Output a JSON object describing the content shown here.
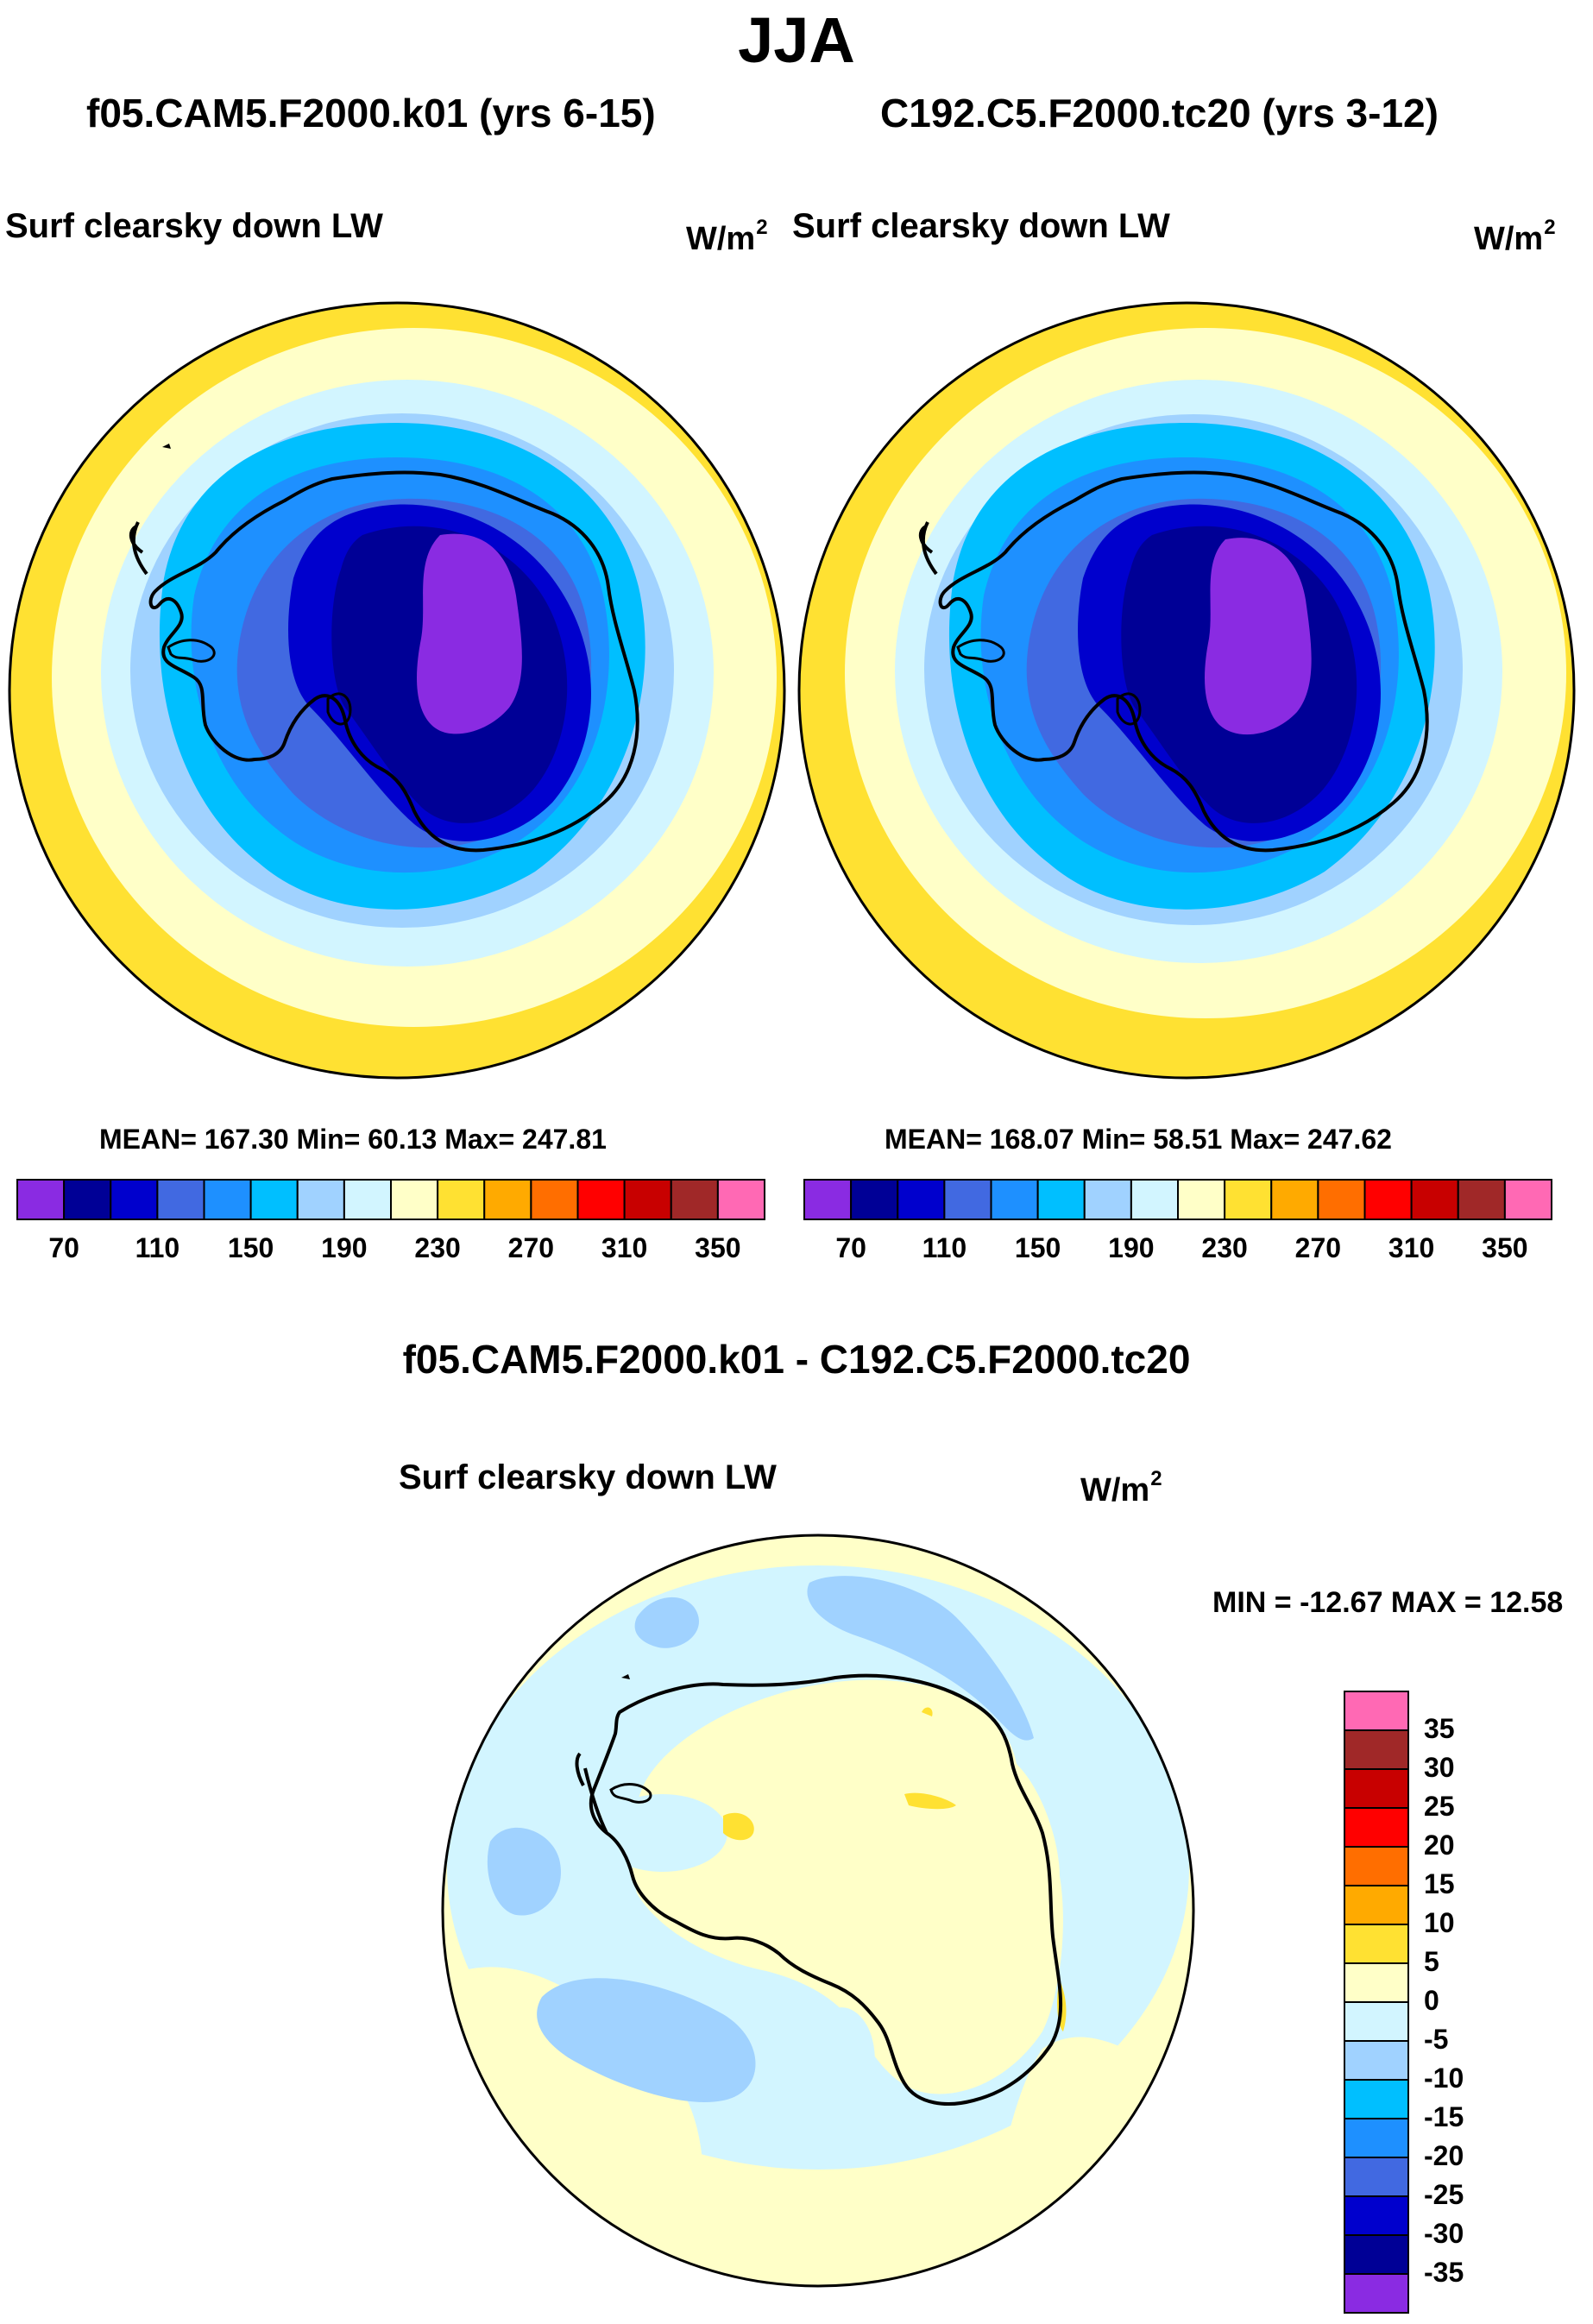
{
  "title": "JJA",
  "left_panel": {
    "case_title": "f05.CAM5.F2000.k01 (yrs 6-15)",
    "variable": "Surf clearsky down LW",
    "units": "W/m",
    "units_exponent": "2",
    "stats": "MEAN= 167.30  Min=  60.13  Max= 247.81",
    "mean": 167.3,
    "min": 60.13,
    "max": 247.81
  },
  "right_panel": {
    "case_title": "C192.C5.F2000.tc20 (yrs 3-12)",
    "variable": "Surf clearsky down LW",
    "units": "W/m",
    "units_exponent": "2",
    "stats": "MEAN= 168.07  Min=  58.51  Max= 247.62",
    "mean": 168.07,
    "min": 58.51,
    "max": 247.62
  },
  "colorbar": {
    "colors": [
      "#8a2be2",
      "#000096",
      "#0000cd",
      "#4169e1",
      "#1e90ff",
      "#00bfff",
      "#a0d2ff",
      "#d2f5ff",
      "#ffffc8",
      "#ffe132",
      "#ffaa00",
      "#ff6e00",
      "#ff0000",
      "#c80000",
      "#a02828",
      "#ff69b4"
    ],
    "labels": [
      "70",
      "110",
      "150",
      "190",
      "230",
      "270",
      "310",
      "350"
    ]
  },
  "diff_panel": {
    "title": "f05.CAM5.F2000.k01 - C192.C5.F2000.tc20",
    "variable": "Surf clearsky down LW",
    "units": "W/m",
    "units_exponent": "2",
    "minmax": "MIN = -12.67 MAX =  12.58",
    "min": -12.67,
    "max": 12.58,
    "colorbar_colors": [
      "#8a2be2",
      "#000096",
      "#0000cd",
      "#4169e1",
      "#1e90ff",
      "#00bfff",
      "#a0d2ff",
      "#d2f5ff",
      "#ffffc8",
      "#ffe132",
      "#ffaa00",
      "#ff6e00",
      "#ff0000",
      "#c80000",
      "#a02828",
      "#ff69b4"
    ],
    "colorbar_labels": [
      "-35",
      "-30",
      "-25",
      "-20",
      "-15",
      "-10",
      "-5",
      "0",
      "5",
      "10",
      "15",
      "20",
      "25",
      "30",
      "35"
    ]
  }
}
